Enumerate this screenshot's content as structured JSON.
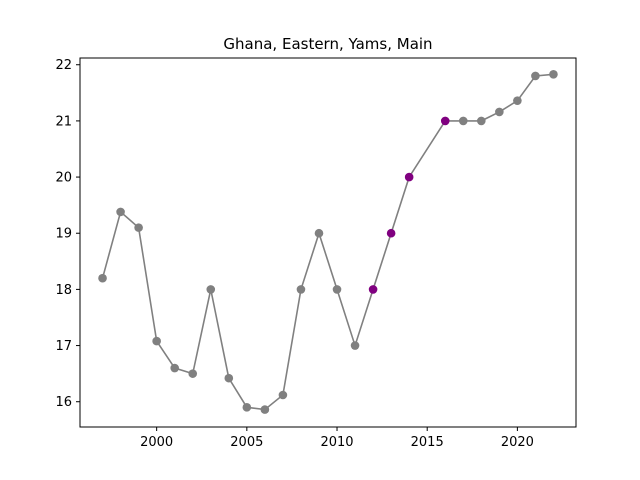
{
  "chart_data": {
    "type": "line",
    "title": "Ghana, Eastern, Yams, Main",
    "xlabel": "",
    "ylabel": "",
    "xlim": [
      1995.75,
      2023.25
    ],
    "ylim": [
      15.55,
      22.12
    ],
    "xticks": [
      2000,
      2005,
      2010,
      2015,
      2020
    ],
    "xtick_labels": [
      "2000",
      "2005",
      "2010",
      "2015",
      "2020"
    ],
    "yticks": [
      16,
      17,
      18,
      19,
      20,
      21,
      22
    ],
    "ytick_labels": [
      "16",
      "17",
      "18",
      "19",
      "20",
      "21",
      "22"
    ],
    "grid": false,
    "line_color": "#808080",
    "point_color": "#808080",
    "highlight_color": "#800080",
    "series": [
      {
        "x": [
          1997,
          1998,
          1999,
          2000,
          2001,
          2002,
          2003,
          2004,
          2005,
          2006,
          2007,
          2008,
          2009,
          2010,
          2011,
          2012,
          2013,
          2014,
          2016,
          2017,
          2018,
          2019,
          2020,
          2021,
          2022
        ],
        "y": [
          18.2,
          19.38,
          19.1,
          17.08,
          16.6,
          16.5,
          18.0,
          16.42,
          15.9,
          15.86,
          16.12,
          18.0,
          19.0,
          18.0,
          17.0,
          18.0,
          19.0,
          20.0,
          21.0,
          21.0,
          21.0,
          21.16,
          21.36,
          21.8,
          21.83
        ],
        "highlighted": [
          false,
          false,
          false,
          false,
          false,
          false,
          false,
          false,
          false,
          false,
          false,
          false,
          false,
          false,
          false,
          true,
          true,
          true,
          true,
          false,
          false,
          false,
          false,
          false,
          false
        ]
      }
    ]
  }
}
